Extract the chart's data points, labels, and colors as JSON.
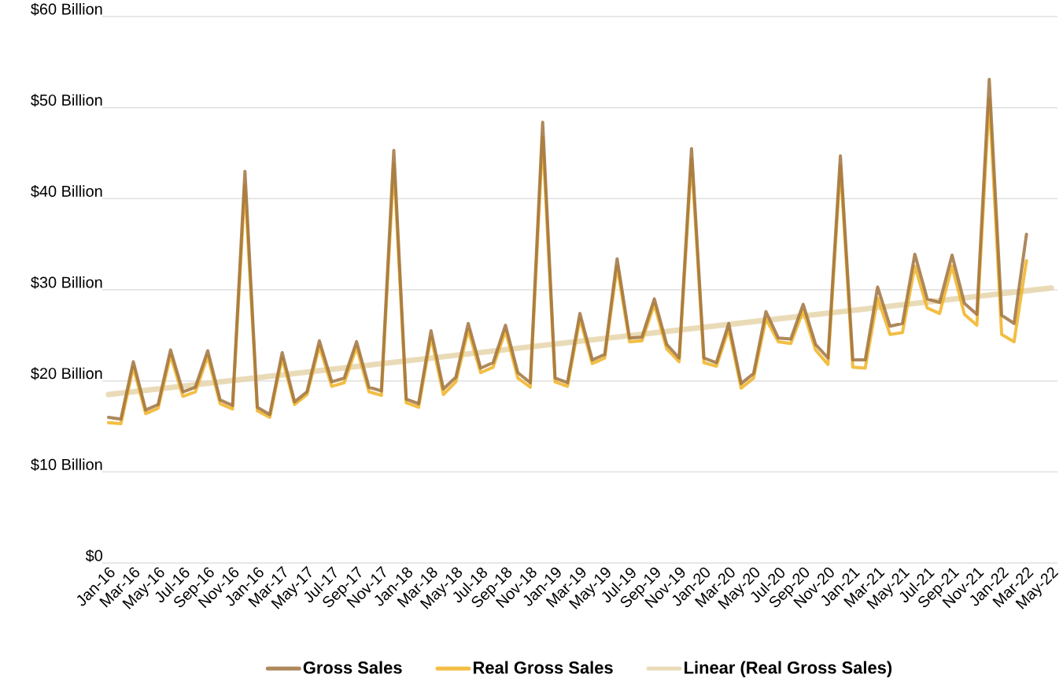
{
  "chart_data": {
    "type": "line",
    "categories": [
      "Jan-16",
      null,
      "Mar-16",
      null,
      "May-16",
      null,
      "Jul-16",
      null,
      "Sep-16",
      null,
      "Nov-16",
      null,
      "Jan-16",
      null,
      "Mar-17",
      null,
      "May-17",
      null,
      "Jul-17",
      null,
      "Sep-17",
      null,
      "Nov-17",
      null,
      "Jan-18",
      null,
      "Mar-18",
      null,
      "May-18",
      null,
      "Jul-18",
      null,
      "Sep-18",
      null,
      "Nov-18",
      null,
      "Jan-19",
      null,
      "Mar-19",
      null,
      "May-19",
      null,
      "Jul-19",
      null,
      "Sep-19",
      null,
      "Nov-19",
      null,
      "Jan-20",
      null,
      "Mar-20",
      null,
      "May-20",
      null,
      "Jul-20",
      null,
      "Sep-20",
      null,
      "Nov-20",
      null,
      "Jan-21",
      null,
      "Mar-21",
      null,
      "May-21",
      null,
      "Jul-21",
      null,
      "Sep-21",
      null,
      "Nov-21",
      null,
      "Jan-22",
      null,
      "Mar-22",
      null,
      "May-22"
    ],
    "series": [
      {
        "name": "Gross Sales",
        "color": "#a0733f",
        "values": [
          16.0,
          15.8,
          22.1,
          16.8,
          17.4,
          23.4,
          18.8,
          19.3,
          23.3,
          17.9,
          17.3,
          43.0,
          17.1,
          16.3,
          23.1,
          17.7,
          18.8,
          24.4,
          19.9,
          20.3,
          24.3,
          19.3,
          18.9,
          45.3,
          18.0,
          17.5,
          25.5,
          19.1,
          20.4,
          26.3,
          21.4,
          22.0,
          26.1,
          20.9,
          19.8,
          48.4,
          20.3,
          19.8,
          27.4,
          22.3,
          22.9,
          33.4,
          24.7,
          24.8,
          29.0,
          24.0,
          22.5,
          45.5,
          22.5,
          22.0,
          26.3,
          19.7,
          20.8,
          27.6,
          24.7,
          24.6,
          28.4,
          24.0,
          22.5,
          44.7,
          22.3,
          22.3,
          30.3,
          26.0,
          26.3,
          33.9,
          29.0,
          28.6,
          33.8,
          28.5,
          27.3,
          53.1,
          27.2,
          26.3,
          36.1,
          null,
          null
        ]
      },
      {
        "name": "Real Gross Sales",
        "color": "#f0b323",
        "values": [
          15.4,
          15.3,
          21.5,
          16.4,
          17.0,
          22.8,
          18.3,
          18.8,
          22.7,
          17.5,
          16.9,
          41.5,
          16.7,
          16.0,
          22.5,
          17.4,
          18.5,
          23.8,
          19.4,
          19.8,
          23.7,
          18.8,
          18.4,
          43.8,
          17.6,
          17.1,
          24.8,
          18.5,
          19.9,
          25.6,
          20.9,
          21.5,
          25.5,
          20.3,
          19.3,
          46.8,
          19.9,
          19.4,
          26.8,
          21.9,
          22.5,
          32.6,
          24.3,
          24.4,
          28.4,
          23.5,
          22.1,
          44.4,
          22.0,
          21.6,
          25.7,
          19.2,
          20.3,
          26.8,
          24.3,
          24.1,
          27.7,
          23.4,
          21.8,
          43.6,
          21.5,
          21.4,
          29.1,
          25.1,
          25.3,
          32.6,
          28.0,
          27.4,
          32.6,
          27.3,
          26.1,
          51.0,
          25.1,
          24.3,
          33.2,
          null,
          null
        ]
      },
      {
        "name": "Linear (Real Gross Sales)",
        "color": "#e6d5ac",
        "values": [
          18.5,
          null,
          null,
          null,
          null,
          null,
          null,
          null,
          null,
          null,
          null,
          null,
          null,
          null,
          null,
          null,
          null,
          null,
          null,
          null,
          null,
          null,
          null,
          null,
          null,
          null,
          null,
          null,
          null,
          null,
          null,
          null,
          null,
          null,
          null,
          null,
          null,
          null,
          null,
          null,
          null,
          null,
          null,
          null,
          null,
          null,
          null,
          null,
          null,
          null,
          null,
          null,
          null,
          null,
          null,
          null,
          null,
          null,
          null,
          null,
          null,
          null,
          null,
          null,
          null,
          null,
          null,
          null,
          null,
          null,
          null,
          null,
          null,
          null,
          null,
          null,
          30.2
        ]
      }
    ],
    "ylim": [
      0,
      60
    ],
    "yticks": [
      {
        "value": 0,
        "label": "$0"
      },
      {
        "value": 10,
        "label": "$10 Billion"
      },
      {
        "value": 20,
        "label": "$20 Billion"
      },
      {
        "value": 30,
        "label": "$30 Billion"
      },
      {
        "value": 40,
        "label": "$40 Billion"
      },
      {
        "value": 50,
        "label": "$50 Billion"
      },
      {
        "value": 60,
        "label": "$60 Billion"
      }
    ],
    "grid": "y",
    "legend": "bottom",
    "marker": "none",
    "line_style": "solid"
  }
}
